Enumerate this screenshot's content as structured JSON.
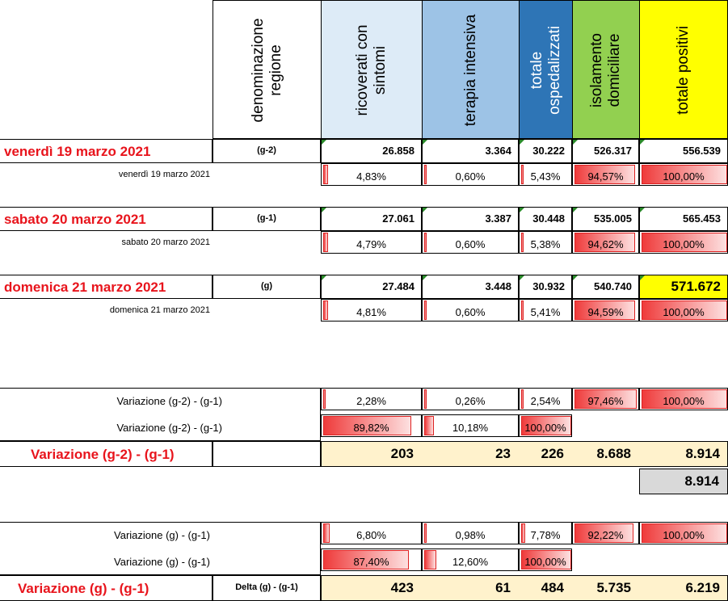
{
  "header": {
    "denominazione": "denominazione\nregione",
    "ricoverati": "ricoverati con\nsintomi",
    "terapia": "terapia intensiva",
    "totale_osp": "totale\nospedalizzati",
    "isolamento": "isolamento\ndomiciliare",
    "totale_pos": "totale positivi"
  },
  "colors": {
    "ricoverati": "#ddebf7",
    "terapia": "#9dc3e6",
    "totale_osp": "#2e75b6",
    "isolamento": "#92d050",
    "totale_pos": "#ffff00",
    "highlight": "#fff2cc",
    "grey": "#d9d9d9",
    "red": "#e8141c"
  },
  "days": [
    {
      "title": "venerdì 19 marzo 2021",
      "tag": "(g-2)",
      "sub": "venerdì 19 marzo 2021",
      "values": [
        "26.858",
        "3.364",
        "30.222",
        "526.317",
        "556.539"
      ],
      "pcts": [
        "4,83%",
        "0,60%",
        "5,43%",
        "94,57%",
        "100,00%"
      ],
      "pct_fill": [
        4.83,
        0.6,
        5.43,
        94.57,
        100
      ]
    },
    {
      "title": "sabato 20 marzo 2021",
      "tag": "(g-1)",
      "sub": "sabato 20 marzo 2021",
      "values": [
        "27.061",
        "3.387",
        "30.448",
        "535.005",
        "565.453"
      ],
      "pcts": [
        "4,79%",
        "0,60%",
        "5,38%",
        "94,62%",
        "100,00%"
      ],
      "pct_fill": [
        4.79,
        0.6,
        5.38,
        94.62,
        100
      ]
    },
    {
      "title": "domenica 21 marzo 2021",
      "tag": "(g)",
      "sub": "domenica 21 marzo 2021",
      "values": [
        "27.484",
        "3.448",
        "30.932",
        "540.740",
        "571.672"
      ],
      "pcts": [
        "4,81%",
        "0,60%",
        "5,41%",
        "94,59%",
        "100,00%"
      ],
      "pct_fill": [
        4.81,
        0.6,
        5.41,
        94.59,
        100
      ]
    }
  ],
  "var1": {
    "label_a": "Variazione (g-2) - (g-1)",
    "pcts_a": [
      "2,28%",
      "0,26%",
      "2,54%",
      "97,46%",
      "100,00%"
    ],
    "fill_a": [
      2.28,
      0.26,
      2.54,
      97.46,
      100
    ],
    "label_b": "Variazione (g-2) - (g-1)",
    "pcts_b": [
      "89,82%",
      "10,18%",
      "100,00%"
    ],
    "fill_b": [
      89.82,
      10.18,
      100
    ],
    "title": "Variazione (g-2) - (g-1)",
    "values": [
      "203",
      "23",
      "226",
      "8.688",
      "8.914"
    ],
    "extra": "8.914"
  },
  "var2": {
    "label_a": "Variazione (g) - (g-1)",
    "pcts_a": [
      "6,80%",
      "0,98%",
      "7,78%",
      "92,22%",
      "100,00%"
    ],
    "fill_a": [
      6.8,
      0.98,
      7.78,
      92.22,
      100
    ],
    "label_b": "Variazione (g) - (g-1)",
    "pcts_b": [
      "87,40%",
      "12,60%",
      "100,00%"
    ],
    "fill_b": [
      87.4,
      12.6,
      100
    ],
    "title": "Variazione (g) - (g-1)",
    "tag": "Delta (g) - (g-1)",
    "values": [
      "423",
      "61",
      "484",
      "5.735",
      "6.219"
    ]
  }
}
